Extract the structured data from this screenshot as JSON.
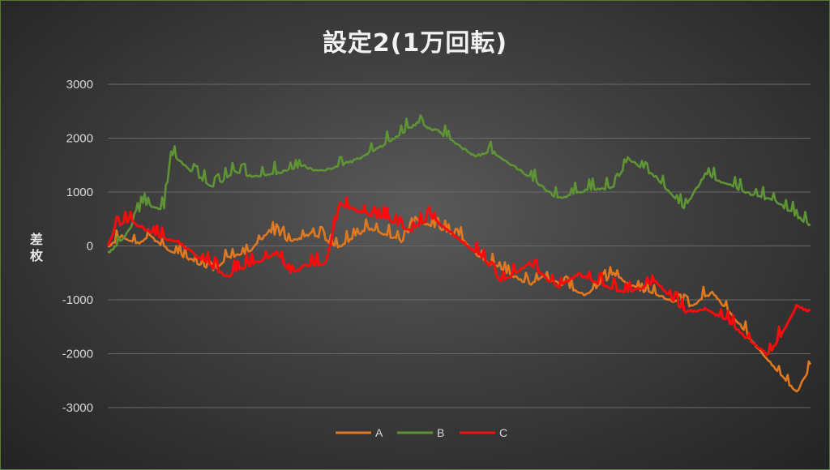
{
  "chart_data": {
    "type": "line",
    "title": "設定2(1万回転)",
    "ylabel": "差枚",
    "xlabel": "",
    "ylim": [
      -3000,
      3000
    ],
    "yticks": [
      "3000",
      "2000",
      "1000",
      "0",
      "-1000",
      "-2000",
      "-3000"
    ],
    "ytick_values": [
      3000,
      2000,
      1000,
      0,
      -1000,
      -2000,
      -3000
    ],
    "grid": true,
    "legend_position": "bottom",
    "x_count": 100,
    "series": [
      {
        "name": "A",
        "color": "#e07820",
        "x": [
          0,
          2,
          4,
          6,
          8,
          12,
          15,
          17,
          20,
          23,
          26,
          29,
          33,
          37,
          42,
          44,
          50,
          53,
          60,
          62,
          68,
          72,
          75,
          77,
          83,
          86,
          90,
          92,
          98,
          100
        ],
        "values": [
          0,
          200,
          50,
          200,
          0,
          -250,
          -450,
          -200,
          -100,
          300,
          100,
          250,
          0,
          350,
          100,
          500,
          200,
          -200,
          -700,
          -550,
          -900,
          -500,
          -750,
          -850,
          -1100,
          -850,
          -1450,
          -1800,
          -2700,
          -2200
        ]
      },
      {
        "name": "B",
        "color": "#5f9434",
        "x": [
          0,
          1,
          3,
          5,
          8,
          9,
          12,
          15,
          18,
          21,
          25,
          28,
          30,
          35,
          40,
          44,
          47,
          52,
          55,
          60,
          64,
          68,
          72,
          74,
          78,
          82,
          85,
          91,
          95,
          100
        ],
        "values": [
          -100,
          0,
          300,
          800,
          700,
          1750,
          1400,
          1100,
          1400,
          1300,
          1400,
          1500,
          1400,
          1600,
          1950,
          2300,
          2150,
          1700,
          1750,
          1300,
          900,
          1050,
          1100,
          1650,
          1300,
          700,
          1350,
          1000,
          850,
          400
        ]
      },
      {
        "name": "C",
        "color": "#ff0a0a",
        "x": [
          0,
          1,
          3,
          5,
          8,
          10,
          14,
          17,
          19,
          21,
          24,
          26,
          28,
          31,
          33,
          37,
          40,
          43,
          46,
          49,
          53,
          56,
          60,
          64,
          67,
          71,
          74,
          78,
          82,
          85,
          88,
          91,
          94,
          96,
          98,
          100
        ],
        "values": [
          0,
          350,
          500,
          350,
          150,
          100,
          -300,
          -550,
          -400,
          -300,
          -100,
          -500,
          -350,
          -300,
          800,
          600,
          500,
          300,
          550,
          250,
          -150,
          -650,
          -300,
          -750,
          -500,
          -750,
          -850,
          -650,
          -1200,
          -1150,
          -1350,
          -1700,
          -2000,
          -1600,
          -1100,
          -1200
        ]
      }
    ]
  }
}
